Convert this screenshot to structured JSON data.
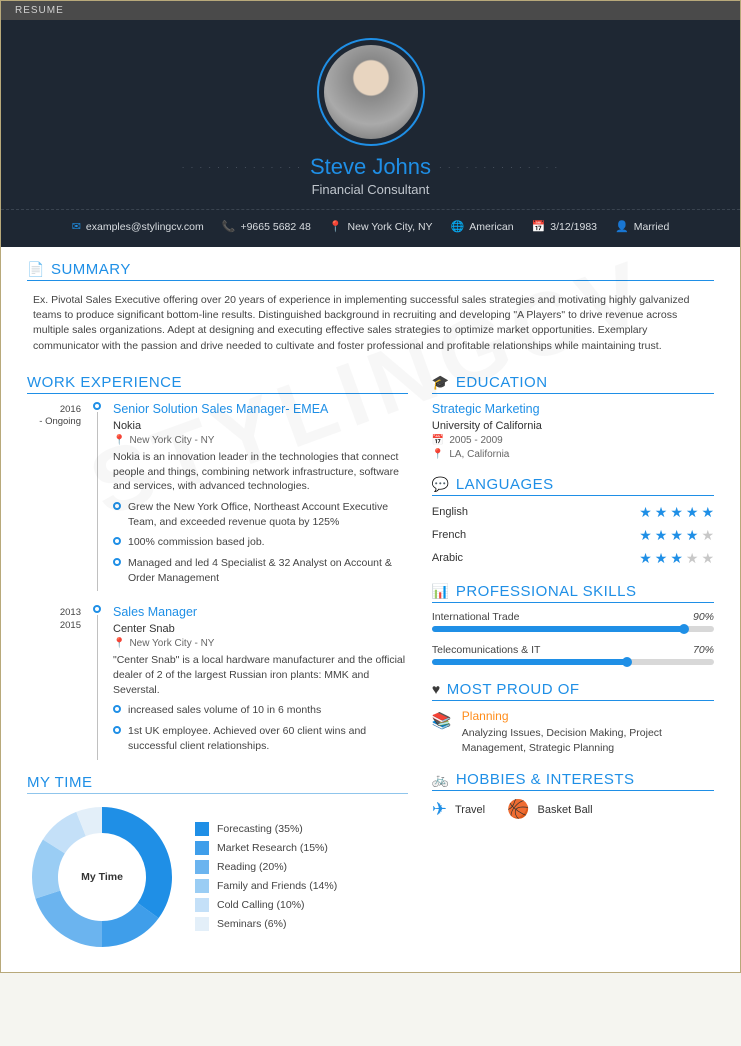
{
  "topbar": {
    "label": "RESUME"
  },
  "hero": {
    "name": "Steve Johns",
    "title": "Financial Consultant",
    "contacts": [
      {
        "icon": "✉",
        "text": "examples@stylingcv.com"
      },
      {
        "icon": "📞",
        "text": "+9665 5682 48"
      },
      {
        "icon": "📍",
        "text": "New York City, NY"
      },
      {
        "icon": "🌐",
        "text": "American"
      },
      {
        "icon": "📅",
        "text": "3/12/1983"
      },
      {
        "icon": "👤",
        "text": "Married"
      }
    ]
  },
  "summary": {
    "heading": "SUMMARY",
    "text": "Ex. Pivotal Sales Executive offering over 20 years of experience in implementing successful sales strategies and motivating highly galvanized teams to produce significant bottom-line results. Distinguished background in recruiting and developing \"A Players\" to drive revenue across multiple sales organizations. Adept at designing and executing effective sales strategies to optimize market opportunities. Exemplary communicator with the passion and drive needed to cultivate and foster professional and profitable relationships while maintaining trust."
  },
  "work": {
    "heading": "WORK EXPERIENCE",
    "jobs": [
      {
        "dates_from": "2016",
        "dates_to": "- Ongoing",
        "title": "Senior Solution Sales Manager- EMEA",
        "company": "Nokia",
        "location": "New York City - NY",
        "desc": "Nokia is an innovation leader in the technologies that connect people and things, combining network infrastructure, software and services, with advanced technologies.",
        "bullets": [
          "Grew the New York Office, Northeast Account Executive Team, and exceeded revenue quota by 125%",
          "100% commission based job.",
          "Managed and led 4 Specialist & 32 Analyst on Account & Order Management"
        ]
      },
      {
        "dates_from": "2013",
        "dates_to": "2015",
        "title": "Sales Manager",
        "company": "Center Snab",
        "location": "New York City - NY",
        "desc": "\"Center Snab\" is a local hardware manufacturer and the official dealer of 2 of the largest Russian iron plants: MMK and Severstal.",
        "bullets": [
          "increased sales volume of 10 in 6 months",
          "1st UK employee. Achieved over 60 client wins and successful client relationships."
        ]
      }
    ]
  },
  "education": {
    "heading": "EDUCATION",
    "degree": "Strategic Marketing",
    "school": "University of California",
    "years": "2005 - 2009",
    "location": "LA, California"
  },
  "languages": {
    "heading": "LANGUAGES",
    "items": [
      {
        "name": "English",
        "rating": 5
      },
      {
        "name": "French",
        "rating": 4
      },
      {
        "name": "Arabic",
        "rating": 3
      }
    ],
    "max_rating": 5,
    "star_color": "#1f8fe6",
    "star_empty_color": "#c8c8c8"
  },
  "skills": {
    "heading": "PROFESSIONAL SKILLS",
    "items": [
      {
        "name": "International Trade",
        "pct": 90
      },
      {
        "name": "Telecomunications & IT",
        "pct": 70
      }
    ],
    "bar_color": "#1f8fe6",
    "bar_bg": "#d8d8d8"
  },
  "proud": {
    "heading": "MOST PROUD OF",
    "title": "Planning",
    "text": "Analyzing Issues, Decision Making, Project Management, Strategic Planning"
  },
  "hobbies": {
    "heading": "HOBBIES & INTERESTS",
    "items": [
      {
        "icon": "✈",
        "label": "Travel"
      },
      {
        "icon": "🏀",
        "label": "Basket Ball"
      }
    ]
  },
  "mytime": {
    "heading": "MY TIME",
    "center_label": "My Time",
    "slices": [
      {
        "label": "Forecasting (35%)",
        "value": 35,
        "color": "#1f8fe6"
      },
      {
        "label": "Market Research (15%)",
        "value": 15,
        "color": "#3f9eea"
      },
      {
        "label": "Reading (20%)",
        "value": 20,
        "color": "#6bb4ef"
      },
      {
        "label": "Family and Friends (14%)",
        "value": 14,
        "color": "#9acdf4"
      },
      {
        "label": "Cold Calling (10%)",
        "value": 10,
        "color": "#c4e0f8"
      },
      {
        "label": "Seminars (6%)",
        "value": 6,
        "color": "#e3eff9"
      }
    ],
    "donut_outer_r": 70,
    "donut_inner_r": 44
  },
  "colors": {
    "accent": "#1f8fe6",
    "hero_bg": "#1e2733",
    "proud_title": "#ff8c1a"
  },
  "watermark": "STYLINGCV"
}
